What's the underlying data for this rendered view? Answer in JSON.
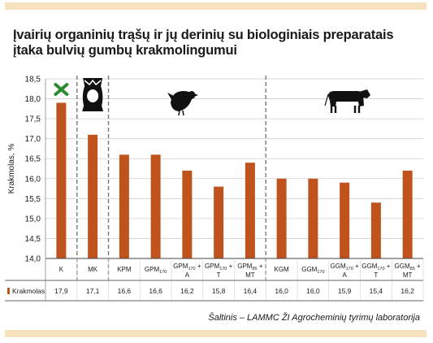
{
  "title": {
    "line1": "Įvairių organinių trąšų ir jų derinių su biologiniais preparatais",
    "line2": "įtaka bulvių gumbų krakmolingumui"
  },
  "source": "Šaltinis – LAMMC ŽI Agrocheminių tyrimų laboratorija",
  "colors": {
    "bar": "#c0531d",
    "accent_band": "#f6e3bd",
    "grid": "#cfcfcf",
    "divider": "#777777"
  },
  "icons": [
    "x-mark-icon",
    "bag-icon",
    "chicken-icon",
    "cow-icon"
  ],
  "chart_data": {
    "type": "bar",
    "ylabel": "Krakmolas, %",
    "ylim": [
      14.0,
      18.5
    ],
    "yticks": [
      "14,0",
      "14,5",
      "15,0",
      "15,5",
      "16,0",
      "16,5",
      "17,0",
      "17,5",
      "18,0",
      "18,5"
    ],
    "ytick_values": [
      14.0,
      14.5,
      15.0,
      15.5,
      16.0,
      16.5,
      17.0,
      17.5,
      18.0,
      18.5
    ],
    "grid": true,
    "categories": [
      {
        "main": "K",
        "sub": "",
        "line2": ""
      },
      {
        "main": "MK",
        "sub": "",
        "line2": ""
      },
      {
        "main": "KPM",
        "sub": "",
        "line2": ""
      },
      {
        "main": "GPM",
        "sub": "170",
        "line2": ""
      },
      {
        "main": "GPM",
        "sub": "170",
        "suffix": " +",
        "line2": "A"
      },
      {
        "main": "GPM",
        "sub": "170",
        "suffix": " +",
        "line2": "T"
      },
      {
        "main": "GPM",
        "sub": "85",
        "suffix": " +",
        "line2": "MT"
      },
      {
        "main": "KGM",
        "sub": "",
        "line2": ""
      },
      {
        "main": "GGM",
        "sub": "170",
        "line2": ""
      },
      {
        "main": "GGM",
        "sub": "170",
        "suffix": " +",
        "line2": "A"
      },
      {
        "main": "GGM",
        "sub": "170",
        "suffix": " +",
        "line2": "T"
      },
      {
        "main": "GGM",
        "sub": "85",
        "suffix": " +",
        "line2": "MT"
      }
    ],
    "series": [
      {
        "name": "Krakmolas",
        "values": [
          17.9,
          17.1,
          16.6,
          16.6,
          16.2,
          15.8,
          16.4,
          16.0,
          16.0,
          15.9,
          15.4,
          16.2
        ]
      }
    ],
    "value_labels": [
      "17,9",
      "17,1",
      "16,6",
      "16,6",
      "16,2",
      "15,8",
      "16,4",
      "16,0",
      "16,0",
      "15,9",
      "15,4",
      "16,2"
    ],
    "group_dividers_after": [
      1,
      2,
      7
    ]
  }
}
